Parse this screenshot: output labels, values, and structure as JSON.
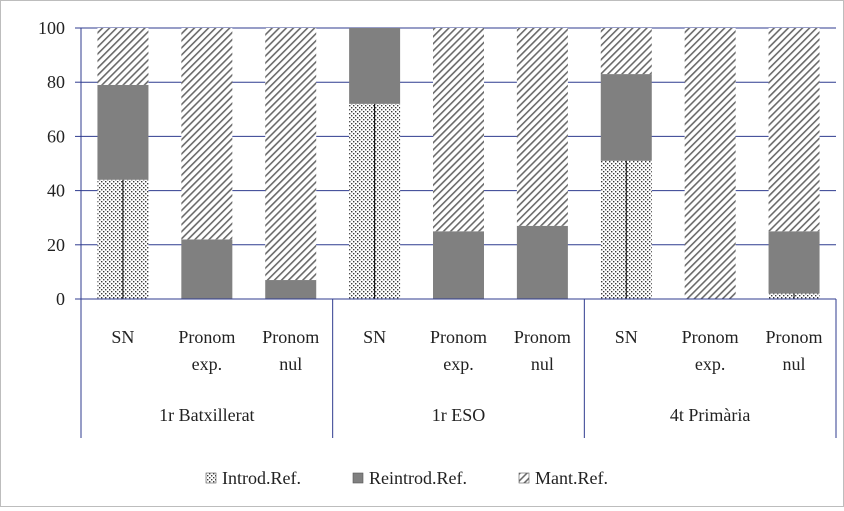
{
  "chart_data": {
    "type": "bar",
    "stacked": true,
    "stacked_percent": true,
    "title": "",
    "xlabel": "",
    "ylabel": "",
    "ylim": [
      0,
      100
    ],
    "yticks": [
      0,
      20,
      40,
      60,
      80,
      100
    ],
    "grid": true,
    "legend_position": "bottom",
    "groups": [
      {
        "label": "1r Batxillerat",
        "categories": [
          "SN",
          "Pronom exp.",
          "Pronom nul"
        ]
      },
      {
        "label": "1r ESO",
        "categories": [
          "SN",
          "Pronom exp.",
          "Pronom nul"
        ]
      },
      {
        "label": "4t Primària",
        "categories": [
          "SN",
          "Pronom exp.",
          "Pronom nul"
        ]
      }
    ],
    "categories": [
      "SN",
      "Pronom exp.",
      "Pronom nul",
      "SN",
      "Pronom exp.",
      "Pronom nul",
      "SN",
      "Pronom exp.",
      "Pronom nul"
    ],
    "series": [
      {
        "name": "Introd.Ref.",
        "color": "#c8c8c8",
        "pattern": "dots",
        "values": [
          44,
          0,
          0,
          72,
          0,
          0,
          51,
          0,
          2
        ]
      },
      {
        "name": "Reintrod.Ref.",
        "color": "#808080",
        "pattern": "solid",
        "values": [
          35,
          22,
          7,
          28,
          25,
          27,
          32,
          0,
          23
        ]
      },
      {
        "name": "Mant.Ref.",
        "color": "#a0a0a0",
        "pattern": "diagonal-hatch",
        "values": [
          21,
          78,
          93,
          0,
          75,
          73,
          17,
          100,
          75
        ]
      }
    ]
  }
}
